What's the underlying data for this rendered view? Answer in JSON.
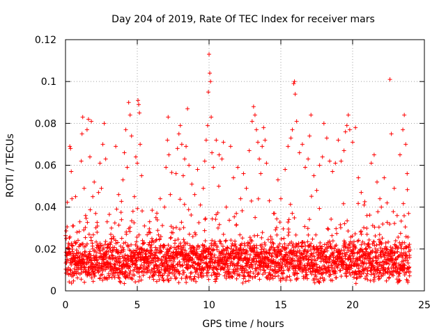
{
  "chart_data": {
    "type": "scatter",
    "title": "Day 204 of 2019, Rate Of TEC Index for receiver mars",
    "xlabel": "GPS time / hours",
    "ylabel": "ROTI / TECUs",
    "xlim": [
      0,
      25
    ],
    "ylim": [
      0,
      0.12
    ],
    "xticks": [
      0,
      5,
      10,
      15,
      20,
      25
    ],
    "yticks": [
      0,
      0.02,
      0.04,
      0.06,
      0.08,
      0.1,
      0.12
    ],
    "xtick_labels": [
      "0",
      "5",
      "10",
      "15",
      "20",
      "25"
    ],
    "ytick_labels": [
      "0",
      "0.02",
      "0.04",
      "0.06",
      "0.08",
      "0.1",
      "0.12"
    ],
    "grid": true,
    "marker": "+",
    "color": "#ff0000",
    "series": [
      {
        "name": "ROTI",
        "points": [
          [
            0.05,
            0.025
          ],
          [
            0.1,
            0.018
          ],
          [
            0.2,
            0.011
          ],
          [
            0.25,
            0.022
          ],
          [
            0.3,
            0.069
          ],
          [
            0.35,
            0.068
          ],
          [
            0.4,
            0.057
          ],
          [
            0.45,
            0.044
          ],
          [
            0.5,
            0.031
          ],
          [
            0.6,
            0.015
          ],
          [
            0.7,
            0.045
          ],
          [
            0.8,
            0.028
          ],
          [
            0.9,
            0.012
          ],
          [
            1.0,
            0.033
          ],
          [
            1.1,
            0.062
          ],
          [
            1.15,
            0.075
          ],
          [
            1.2,
            0.083
          ],
          [
            1.3,
            0.049
          ],
          [
            1.4,
            0.036
          ],
          [
            1.5,
            0.077
          ],
          [
            1.6,
            0.082
          ],
          [
            1.7,
            0.064
          ],
          [
            1.8,
            0.081
          ],
          [
            1.9,
            0.045
          ],
          [
            2.0,
            0.052
          ],
          [
            2.1,
            0.037
          ],
          [
            2.2,
            0.028
          ],
          [
            2.3,
            0.047
          ],
          [
            2.4,
            0.061
          ],
          [
            2.5,
            0.049
          ],
          [
            2.6,
            0.07
          ],
          [
            2.7,
            0.08
          ],
          [
            2.8,
            0.063
          ],
          [
            2.9,
            0.033
          ],
          [
            3.0,
            0.021
          ],
          [
            3.2,
            0.03
          ],
          [
            3.5,
            0.069
          ],
          [
            3.7,
            0.046
          ],
          [
            3.9,
            0.034
          ],
          [
            4.0,
            0.053
          ],
          [
            4.1,
            0.066
          ],
          [
            4.2,
            0.077
          ],
          [
            4.3,
            0.059
          ],
          [
            4.4,
            0.09
          ],
          [
            4.5,
            0.084
          ],
          [
            4.6,
            0.074
          ],
          [
            4.7,
            0.038
          ],
          [
            4.8,
            0.045
          ],
          [
            4.9,
            0.064
          ],
          [
            5.0,
            0.061
          ],
          [
            5.05,
            0.091
          ],
          [
            5.1,
            0.089
          ],
          [
            5.15,
            0.085
          ],
          [
            5.2,
            0.07
          ],
          [
            5.3,
            0.055
          ],
          [
            5.5,
            0.031
          ],
          [
            5.8,
            0.028
          ],
          [
            6.0,
            0.022
          ],
          [
            6.3,
            0.035
          ],
          [
            6.6,
            0.044
          ],
          [
            6.9,
            0.04
          ],
          [
            7.0,
            0.059
          ],
          [
            7.1,
            0.072
          ],
          [
            7.15,
            0.083
          ],
          [
            7.2,
            0.065
          ],
          [
            7.3,
            0.046
          ],
          [
            7.5,
            0.03
          ],
          [
            7.7,
            0.056
          ],
          [
            7.8,
            0.068
          ],
          [
            7.9,
            0.075
          ],
          [
            8.0,
            0.079
          ],
          [
            8.1,
            0.07
          ],
          [
            8.2,
            0.055
          ],
          [
            8.3,
            0.063
          ],
          [
            8.4,
            0.069
          ],
          [
            8.5,
            0.087
          ],
          [
            8.6,
            0.06
          ],
          [
            8.8,
            0.051
          ],
          [
            9.0,
            0.046
          ],
          [
            9.2,
            0.058
          ],
          [
            9.4,
            0.041
          ],
          [
            9.6,
            0.049
          ],
          [
            9.7,
            0.062
          ],
          [
            9.8,
            0.072
          ],
          [
            9.9,
            0.079
          ],
          [
            9.95,
            0.095
          ],
          [
            10.0,
            0.113
          ],
          [
            10.05,
            0.104
          ],
          [
            10.1,
            0.1
          ],
          [
            10.15,
            0.083
          ],
          [
            10.2,
            0.066
          ],
          [
            10.3,
            0.059
          ],
          [
            10.5,
            0.072
          ],
          [
            10.7,
            0.065
          ],
          [
            10.9,
            0.063
          ],
          [
            11.0,
            0.071
          ],
          [
            11.2,
            0.04
          ],
          [
            11.5,
            0.069
          ],
          [
            11.7,
            0.054
          ],
          [
            11.9,
            0.037
          ],
          [
            12.0,
            0.059
          ],
          [
            12.2,
            0.044
          ],
          [
            12.4,
            0.056
          ],
          [
            12.6,
            0.049
          ],
          [
            12.8,
            0.067
          ],
          [
            13.0,
            0.081
          ],
          [
            13.1,
            0.088
          ],
          [
            13.2,
            0.084
          ],
          [
            13.3,
            0.077
          ],
          [
            13.4,
            0.071
          ],
          [
            13.5,
            0.063
          ],
          [
            13.6,
            0.056
          ],
          [
            13.7,
            0.069
          ],
          [
            13.8,
            0.078
          ],
          [
            13.9,
            0.072
          ],
          [
            14.0,
            0.061
          ],
          [
            14.2,
            0.043
          ],
          [
            14.5,
            0.037
          ],
          [
            14.8,
            0.053
          ],
          [
            15.0,
            0.044
          ],
          [
            15.3,
            0.058
          ],
          [
            15.5,
            0.069
          ],
          [
            15.7,
            0.073
          ],
          [
            15.8,
            0.077
          ],
          [
            15.9,
            0.099
          ],
          [
            15.95,
            0.1
          ],
          [
            16.0,
            0.094
          ],
          [
            16.1,
            0.081
          ],
          [
            16.3,
            0.066
          ],
          [
            16.5,
            0.07
          ],
          [
            16.7,
            0.059
          ],
          [
            16.9,
            0.063
          ],
          [
            17.0,
            0.074
          ],
          [
            17.1,
            0.084
          ],
          [
            17.3,
            0.055
          ],
          [
            17.5,
            0.048
          ],
          [
            17.7,
            0.06
          ],
          [
            17.9,
            0.064
          ],
          [
            18.0,
            0.08
          ],
          [
            18.2,
            0.073
          ],
          [
            18.4,
            0.062
          ],
          [
            18.6,
            0.057
          ],
          [
            18.8,
            0.061
          ],
          [
            19.0,
            0.072
          ],
          [
            19.2,
            0.062
          ],
          [
            19.4,
            0.067
          ],
          [
            19.5,
            0.076
          ],
          [
            19.6,
            0.079
          ],
          [
            19.7,
            0.084
          ],
          [
            19.8,
            0.077
          ],
          [
            20.0,
            0.071
          ],
          [
            20.2,
            0.078
          ],
          [
            20.4,
            0.054
          ],
          [
            20.6,
            0.047
          ],
          [
            20.8,
            0.041
          ],
          [
            21.0,
            0.036
          ],
          [
            21.3,
            0.061
          ],
          [
            21.5,
            0.065
          ],
          [
            21.7,
            0.052
          ],
          [
            21.9,
            0.044
          ],
          [
            22.0,
            0.04
          ],
          [
            22.2,
            0.054
          ],
          [
            22.4,
            0.042
          ],
          [
            22.6,
            0.101
          ],
          [
            22.7,
            0.075
          ],
          [
            22.9,
            0.049
          ],
          [
            23.1,
            0.036
          ],
          [
            23.3,
            0.065
          ],
          [
            23.5,
            0.077
          ],
          [
            23.6,
            0.084
          ],
          [
            23.7,
            0.07
          ],
          [
            23.8,
            0.056
          ],
          [
            23.9,
            0.037
          ]
        ],
        "dense_band": {
          "x_range": [
            0,
            24
          ],
          "y_range_typical": [
            0.005,
            0.035
          ],
          "y_median": 0.014
        }
      }
    ]
  }
}
